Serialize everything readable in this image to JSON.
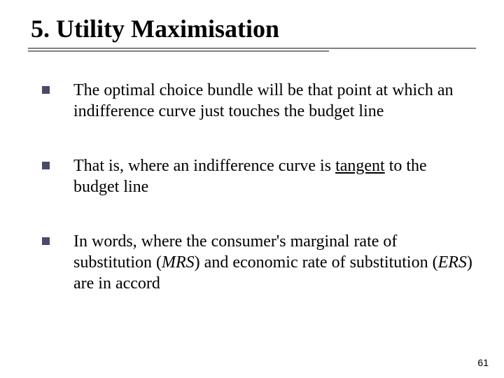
{
  "slide": {
    "title": "5. Utility Maximisation",
    "title_fontsize": 36,
    "title_weight": "bold",
    "title_color": "#000000",
    "underline_color": "#808080",
    "underline_long_width": 640,
    "underline_short_width": 430,
    "bullet_color": "#4a4a6a",
    "bullet_size": 11,
    "body_fontsize": 24,
    "body_color": "#000000",
    "background_color": "#ffffff",
    "bullets": [
      "The optimal choice bundle will be that point at which an indifference curve just touches the budget line",
      "That is, where an indifference curve is tangent to the budget line",
      "In words, where the consumer's marginal rate of substitution (MRS) and economic rate of substitution (ERS) are in accord"
    ],
    "bullet2_pre": "That is, where an indifference curve is ",
    "bullet2_u": "tangent",
    "bullet2_post": " to the budget line",
    "bullet3_pre": "In words, where the consumer's marginal rate of substitution (",
    "bullet3_i1": "MRS",
    "bullet3_mid": ") and economic rate of substitution (",
    "bullet3_i2": "ERS",
    "bullet3_post": ") are in accord",
    "page_number": "61",
    "page_number_fontsize": 14
  }
}
